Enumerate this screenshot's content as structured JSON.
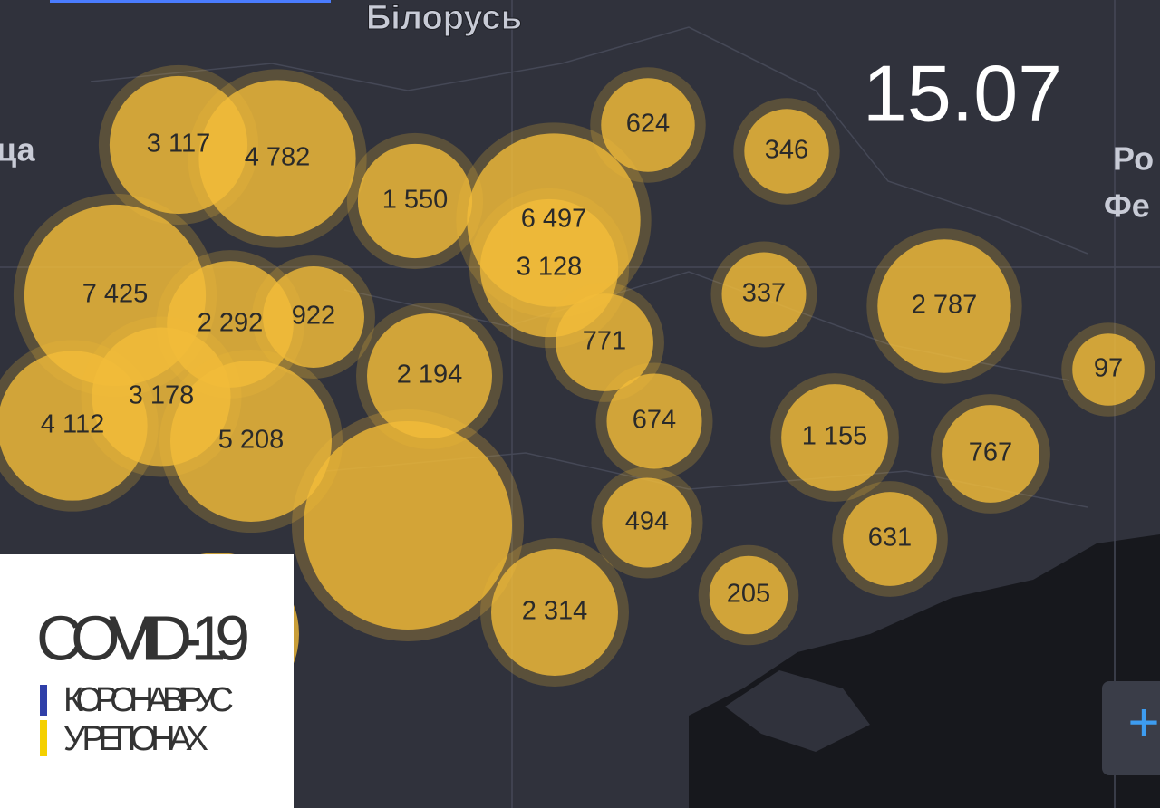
{
  "header": {
    "date": "15.07"
  },
  "map": {
    "labels": [
      "Білорусь",
      "Ро",
      "Фе",
      "ца"
    ]
  },
  "bubbles": [
    {
      "label": "3 117",
      "value": 3117
    },
    {
      "label": "4 782",
      "value": 4782
    },
    {
      "label": "1 550",
      "value": 1550
    },
    {
      "label": "6 497",
      "value": 6497
    },
    {
      "label": "3 128",
      "value": 3128
    },
    {
      "label": "624",
      "value": 624
    },
    {
      "label": "346",
      "value": 346
    },
    {
      "label": "7 425",
      "value": 7425
    },
    {
      "label": "2 292",
      "value": 2292
    },
    {
      "label": "922",
      "value": 922
    },
    {
      "label": "2 194",
      "value": 2194
    },
    {
      "label": "771",
      "value": 771
    },
    {
      "label": "337",
      "value": 337
    },
    {
      "label": "2 787",
      "value": 2787
    },
    {
      "label": "97",
      "value": 97
    },
    {
      "label": "4 112",
      "value": 4112
    },
    {
      "label": "3 178",
      "value": 3178
    },
    {
      "label": "5 208",
      "value": 5208
    },
    {
      "label": "674",
      "value": 674
    },
    {
      "label": "1 155",
      "value": 1155
    },
    {
      "label": "767",
      "value": 767
    },
    {
      "label": "494",
      "value": 494
    },
    {
      "label": "631",
      "value": 631
    },
    {
      "label": "205",
      "value": 205
    },
    {
      "label": "2 314",
      "value": 2314
    }
  ],
  "logo": {
    "title": "COVID-19",
    "line1": "КОРОНАВІРУС",
    "line2": "У РЕГІОНАХ"
  },
  "controls": {
    "zoom_in": "+"
  }
}
